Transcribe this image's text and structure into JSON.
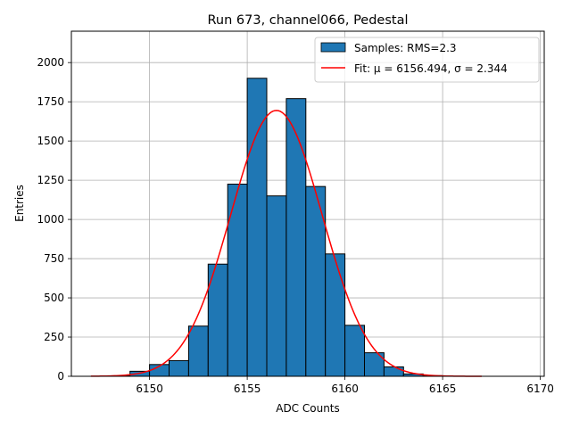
{
  "chart_data": {
    "type": "bar",
    "title": "Run 673, channel066, Pedestal",
    "xlabel": "ADC Counts",
    "ylabel": "Entries",
    "xlim": [
      6146,
      6170.2
    ],
    "ylim": [
      0,
      2200
    ],
    "xticks": [
      6150,
      6155,
      6160,
      6165,
      6170
    ],
    "yticks": [
      0,
      250,
      500,
      750,
      1000,
      1250,
      1500,
      1750,
      2000
    ],
    "grid": true,
    "legend_position": "top-right",
    "bins": {
      "edges": [
        6148,
        6149,
        6150,
        6151,
        6152,
        6153,
        6154,
        6155,
        6156,
        6157,
        6158,
        6159,
        6160,
        6161,
        6162,
        6163,
        6164,
        6165
      ],
      "counts": [
        3,
        32,
        75,
        100,
        320,
        715,
        1225,
        1900,
        1150,
        1770,
        1210,
        780,
        325,
        150,
        60,
        15,
        4
      ]
    },
    "fit": {
      "mu": 6156.494,
      "sigma": 2.344,
      "amplitude": 1695,
      "x_range": [
        6147,
        6167
      ]
    },
    "series": [
      {
        "name": "Samples: RMS=2.3",
        "kind": "histogram",
        "color": "#1f77b4"
      },
      {
        "name": "Fit: μ = 6156.494, σ = 2.344",
        "kind": "line",
        "color": "#ff0000"
      }
    ]
  }
}
